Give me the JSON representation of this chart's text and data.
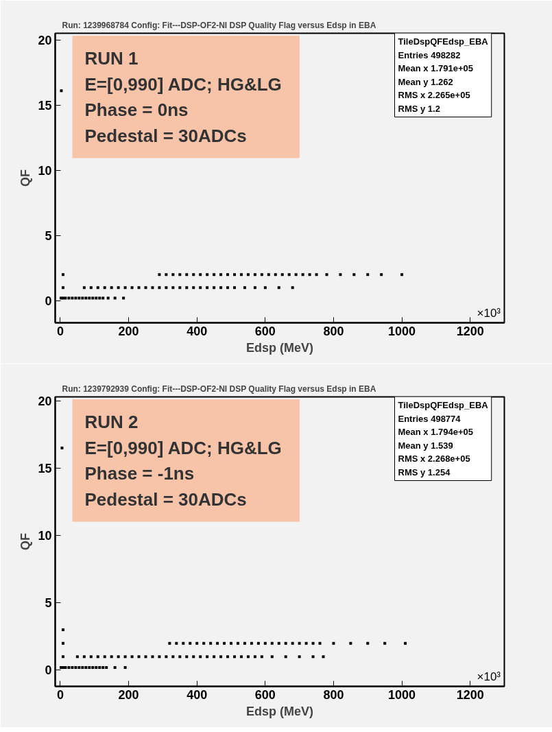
{
  "chart_data": [
    {
      "type": "scatter",
      "title": "Run: 1239968784 Config: Fit---DSP-OF2-NI DSP Quality Flag versus Edsp in EBA",
      "xlabel": "Edsp (MeV)",
      "ylabel": "QF",
      "xlim": [
        -15,
        1300
      ],
      "ylim": [
        -1.7,
        20.5
      ],
      "xticks": [
        0,
        200,
        400,
        600,
        800,
        1000,
        1200
      ],
      "yticks": [
        0,
        5,
        10,
        15,
        20
      ],
      "grid": false,
      "marker": "square",
      "series": [
        {
          "color": "#000000",
          "x": [
            3
          ],
          "values": [
            16.1
          ]
        },
        {
          "color": "#000000",
          "x": [
            2,
            8,
            15,
            25,
            35,
            45,
            55,
            65,
            75,
            85,
            95,
            105,
            115,
            125,
            140,
            160,
            185
          ],
          "values": [
            0.2,
            0.2,
            0.2,
            0.2,
            0.2,
            0.2,
            0.2,
            0.2,
            0.2,
            0.2,
            0.2,
            0.2,
            0.2,
            0.2,
            0.2,
            0.2,
            0.2
          ]
        },
        {
          "color": "#000000",
          "x": [
            8,
            70,
            90,
            110,
            130,
            150,
            170,
            190,
            210,
            230,
            250,
            270,
            290,
            310,
            330,
            350,
            370,
            390,
            410,
            430,
            450,
            470,
            490,
            510,
            540,
            570,
            600,
            640,
            680
          ],
          "values": [
            1,
            1,
            1,
            1,
            1,
            1,
            1,
            1,
            1,
            1,
            1,
            1,
            1,
            1,
            1,
            1,
            1,
            1,
            1,
            1,
            1,
            1,
            1,
            1,
            1,
            1,
            1,
            1,
            1
          ]
        },
        {
          "color": "#000000",
          "x": [
            8,
            290,
            310,
            330,
            350,
            370,
            390,
            410,
            430,
            450,
            470,
            490,
            510,
            530,
            550,
            570,
            590,
            610,
            630,
            650,
            670,
            690,
            710,
            730,
            750,
            780,
            820,
            860,
            900,
            940,
            1000
          ],
          "values": [
            2,
            2,
            2,
            2,
            2,
            2,
            2,
            2,
            2,
            2,
            2,
            2,
            2,
            2,
            2,
            2,
            2,
            2,
            2,
            2,
            2,
            2,
            2,
            2,
            2,
            2,
            2,
            2,
            2,
            2,
            2
          ]
        }
      ],
      "annotations": [
        "RUN 1\nE=[0,990] ADC;  HG&LG\nPhase = 0ns\nPedestal = 30ADCs",
        "TileDspQFEdsp_EBA\nEntries      498282\nMean x   1.791e+05\nMean y          1.262\nRMS x    2.265e+05\nRMS y              1.2",
        "×10³"
      ]
    },
    {
      "type": "scatter",
      "title": "Run: 1239792939 Config: Fit---DSP-OF2-NI DSP Quality Flag versus Edsp in EBA",
      "xlabel": "Edsp (MeV)",
      "ylabel": "QF",
      "xlim": [
        -15,
        1300
      ],
      "ylim": [
        -1.2,
        20.3
      ],
      "xticks": [
        0,
        200,
        400,
        600,
        800,
        1000,
        1200
      ],
      "yticks": [
        0,
        5,
        10,
        15,
        20
      ],
      "grid": false,
      "marker": "square",
      "series": [
        {
          "color": "#000000",
          "x": [
            5
          ],
          "values": [
            16.5
          ]
        },
        {
          "color": "#000000",
          "x": [
            2,
            8,
            15,
            25,
            35,
            45,
            55,
            65,
            75,
            85,
            95,
            105,
            115,
            125,
            135,
            160,
            190
          ],
          "values": [
            0.2,
            0.2,
            0.2,
            0.2,
            0.2,
            0.2,
            0.2,
            0.2,
            0.2,
            0.2,
            0.2,
            0.2,
            0.2,
            0.2,
            0.2,
            0.2,
            0.2
          ]
        },
        {
          "color": "#000000",
          "x": [
            8,
            50,
            70,
            90,
            110,
            130,
            150,
            170,
            190,
            210,
            230,
            250,
            270,
            290,
            310,
            330,
            350,
            370,
            390,
            410,
            430,
            450,
            470,
            490,
            510,
            530,
            550,
            570,
            590,
            620,
            660,
            700,
            740,
            770
          ],
          "values": [
            1,
            1,
            1,
            1,
            1,
            1,
            1,
            1,
            1,
            1,
            1,
            1,
            1,
            1,
            1,
            1,
            1,
            1,
            1,
            1,
            1,
            1,
            1,
            1,
            1,
            1,
            1,
            1,
            1,
            1,
            1,
            1,
            1,
            1
          ]
        },
        {
          "color": "#000000",
          "x": [
            8,
            320,
            340,
            360,
            380,
            400,
            420,
            440,
            460,
            480,
            500,
            520,
            540,
            560,
            580,
            600,
            620,
            640,
            660,
            680,
            700,
            720,
            740,
            760,
            800,
            850,
            900,
            950,
            1010
          ],
          "values": [
            2,
            2,
            2,
            2,
            2,
            2,
            2,
            2,
            2,
            2,
            2,
            2,
            2,
            2,
            2,
            2,
            2,
            2,
            2,
            2,
            2,
            2,
            2,
            2,
            2,
            2,
            2,
            2,
            2
          ]
        },
        {
          "color": "#000000",
          "x": [
            8
          ],
          "values": [
            3
          ]
        }
      ],
      "annotations": [
        "RUN 2\nE=[0,990] ADC;  HG&LG\nPhase = -1ns\nPedestal = 30ADCs",
        "TileDspQFEdsp_EBA\nEntries      498774\nMean x   1.794e+05\nMean y          1.539\nRMS x    2.268e+05\nRMS y          1.254",
        "×10³"
      ]
    }
  ]
}
